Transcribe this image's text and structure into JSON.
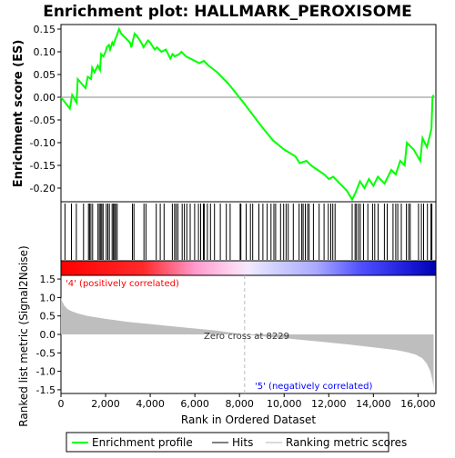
{
  "chart_data": [
    {
      "type": "line",
      "title": "Enrichment plot: HALLMARK_PEROXISOME",
      "ylabel": "Enrichment score (ES)",
      "ylim": [
        -0.23,
        0.16
      ],
      "yticks": [
        "0.15",
        "0.10",
        "0.05",
        "0.00",
        "-0.05",
        "-0.10",
        "-0.15",
        "-0.20"
      ],
      "ytick_values": [
        0.15,
        0.1,
        0.05,
        0.0,
        -0.05,
        -0.1,
        -0.15,
        -0.2
      ],
      "xlim": [
        0,
        16800
      ],
      "series": [
        {
          "name": "Enrichment profile",
          "color": "#00ff00",
          "x": [
            0,
            400,
            500,
            700,
            750,
            1100,
            1200,
            1350,
            1400,
            1500,
            1650,
            1750,
            1800,
            1900,
            2000,
            2050,
            2150,
            2200,
            2300,
            2350,
            2450,
            2500,
            2600,
            2700,
            2900,
            3100,
            3150,
            3300,
            3400,
            3600,
            3700,
            3900,
            4000,
            4200,
            4300,
            4500,
            4700,
            4900,
            5000,
            5100,
            5300,
            5400,
            5600,
            5800,
            6000,
            6200,
            6400,
            6600,
            7000,
            7500,
            8229,
            9000,
            9500,
            10000,
            10500,
            10700,
            11000,
            11200,
            11500,
            11800,
            12000,
            12200,
            12500,
            12800,
            13050,
            13200,
            13400,
            13600,
            13800,
            14000,
            14200,
            14500,
            14800,
            15000,
            15200,
            15400,
            15500,
            15800,
            16100,
            16200,
            16400,
            16600,
            16650,
            16700
          ],
          "y": [
            0.0,
            -0.025,
            0.005,
            -0.012,
            0.04,
            0.02,
            0.045,
            0.04,
            0.065,
            0.055,
            0.07,
            0.06,
            0.095,
            0.09,
            0.1,
            0.11,
            0.115,
            0.105,
            0.12,
            0.115,
            0.13,
            0.135,
            0.15,
            0.14,
            0.13,
            0.12,
            0.11,
            0.14,
            0.135,
            0.12,
            0.11,
            0.125,
            0.12,
            0.105,
            0.11,
            0.1,
            0.105,
            0.085,
            0.095,
            0.09,
            0.095,
            0.1,
            0.09,
            0.085,
            0.08,
            0.075,
            0.08,
            0.07,
            0.055,
            0.03,
            -0.015,
            -0.065,
            -0.095,
            -0.115,
            -0.13,
            -0.145,
            -0.14,
            -0.15,
            -0.16,
            -0.17,
            -0.18,
            -0.175,
            -0.19,
            -0.205,
            -0.225,
            -0.21,
            -0.185,
            -0.2,
            -0.18,
            -0.195,
            -0.175,
            -0.19,
            -0.16,
            -0.17,
            -0.14,
            -0.15,
            -0.1,
            -0.115,
            -0.14,
            -0.09,
            -0.11,
            -0.07,
            0.0,
            0.005
          ]
        }
      ],
      "hits": [
        180,
        470,
        690,
        1010,
        1230,
        1280,
        1340,
        1420,
        1660,
        1720,
        1780,
        1830,
        1890,
        2030,
        2100,
        2170,
        2290,
        2350,
        2400,
        2450,
        2520,
        3200,
        3270,
        3720,
        3810,
        4270,
        4450,
        4620,
        4990,
        5090,
        5160,
        5240,
        5430,
        5530,
        5640,
        5790,
        5990,
        6160,
        6260,
        6380,
        6420,
        6560,
        6700,
        6880,
        7140,
        7410,
        7580,
        8030,
        8060,
        8300,
        8490,
        8590,
        8870,
        9050,
        9240,
        9410,
        9540,
        9620,
        9840,
        9980,
        10090,
        10180,
        10410,
        10670,
        10790,
        10850,
        10950,
        11050,
        11120,
        11310,
        11570,
        11790,
        11980,
        12090,
        12180,
        12280,
        13050,
        13180,
        13240,
        13330,
        13410,
        13560,
        13750,
        13960,
        14060,
        14210,
        14490,
        14620,
        14880,
        15000,
        15090,
        15250,
        15480,
        15580,
        15650,
        16020,
        16150,
        16250,
        16420,
        16580,
        16620
      ]
    },
    {
      "type": "area",
      "ylabel": "Ranked list metric (Signal2Noise)",
      "xlabel": "Rank in Ordered Dataset",
      "ylim": [
        -1.6,
        1.6
      ],
      "yticks": [
        "1.5",
        "1.0",
        "0.5",
        "0.0",
        "-0.5",
        "-1.0",
        "-1.5"
      ],
      "ytick_values": [
        1.5,
        1.0,
        0.5,
        0.0,
        -0.5,
        -1.0,
        -1.5
      ],
      "xlim": [
        0,
        16800
      ],
      "xticks": [
        "0",
        "2,000",
        "4,000",
        "6,000",
        "8,000",
        "10,000",
        "12,000",
        "14,000",
        "16,000"
      ],
      "xtick_values": [
        0,
        2000,
        4000,
        6000,
        8000,
        10000,
        12000,
        14000,
        16000
      ],
      "x": [
        0,
        50,
        150,
        300,
        500,
        800,
        1200,
        2000,
        3000,
        4000,
        5000,
        6000,
        7000,
        8229,
        9000,
        10000,
        11000,
        12000,
        13000,
        14000,
        15000,
        15500,
        15900,
        16200,
        16400,
        16550,
        16650,
        16700
      ],
      "y": [
        1.0,
        0.9,
        0.78,
        0.68,
        0.62,
        0.56,
        0.5,
        0.42,
        0.34,
        0.28,
        0.22,
        0.16,
        0.1,
        0.0,
        -0.05,
        -0.1,
        -0.16,
        -0.22,
        -0.28,
        -0.35,
        -0.42,
        -0.48,
        -0.55,
        -0.65,
        -0.8,
        -1.0,
        -1.25,
        -1.45
      ],
      "annotations": {
        "zero_cross": "Zero cross at 8229",
        "zero_cross_x": 8229,
        "positive": "'4' (positively correlated)",
        "negative": "'5' (negatively correlated)"
      }
    }
  ],
  "legend": {
    "items": [
      "Enrichment profile",
      "Hits",
      "Ranking metric scores"
    ],
    "colors": [
      "#00ff00",
      "#000000",
      "#b4b4b4"
    ]
  },
  "colors": {
    "positive_text": "#ff0000",
    "negative_text": "#0000ff",
    "metric_fill": "#bebebe"
  }
}
